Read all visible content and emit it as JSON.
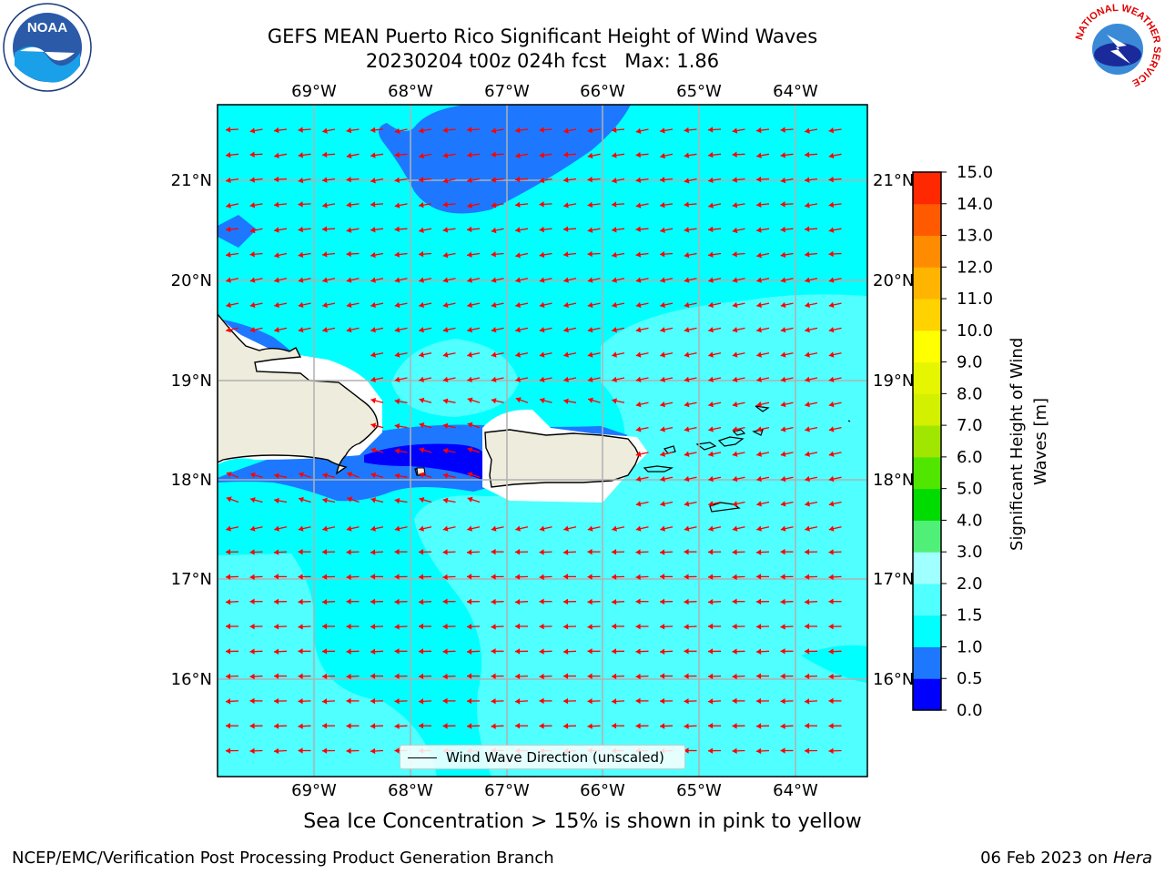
{
  "title": {
    "line1": "GEFS MEAN Puerto Rico Significant Height of Wind Waves",
    "line2": "20230204 t00z 024h fcst   Max: 1.86"
  },
  "map": {
    "lon_ticks": [
      "69°W",
      "68°W",
      "67°W",
      "66°W",
      "65°W",
      "64°W"
    ],
    "lat_ticks": [
      "21°N",
      "20°N",
      "19°N",
      "18°N",
      "17°N",
      "16°N"
    ],
    "ocean_color": "#00ffff",
    "land_color": "#eeecdc",
    "arrow_color": "#ff0000",
    "legend_label": "Wind Wave Direction (unscaled)"
  },
  "colorbar": {
    "label": "Significant Height of Wind Waves [m]",
    "ticks": [
      "0.0",
      "0.5",
      "1.0",
      "1.5",
      "2.0",
      "3.0",
      "4.0",
      "5.0",
      "6.0",
      "7.0",
      "8.0",
      "9.0",
      "10.0",
      "11.0",
      "12.0",
      "13.0",
      "14.0",
      "15.0"
    ],
    "colors": [
      "#0000ff",
      "#1e78ff",
      "#00ffff",
      "#50ffff",
      "#a0ffff",
      "#50f078",
      "#00dc00",
      "#50e600",
      "#a0e600",
      "#d2f000",
      "#e6f500",
      "#ffff00",
      "#ffd200",
      "#ffb400",
      "#ff8c00",
      "#ff5a00",
      "#ff2800",
      "#ff0000"
    ]
  },
  "notes": {
    "sea_ice": "Sea Ice Concentration > 15% is shown in pink to yellow",
    "footer_left": "NCEP/EMC/Verification Post Processing Product Generation Branch",
    "footer_date": "06 Feb 2023 on ",
    "footer_host": "Hera"
  },
  "logos": {
    "left": "NOAA",
    "right_ring": "NATIONAL WEATHER SERVICE"
  }
}
